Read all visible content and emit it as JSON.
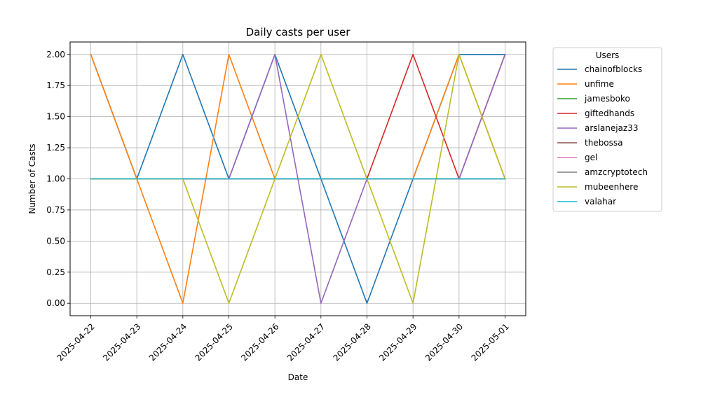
{
  "chart_data": {
    "type": "line",
    "title": "Daily casts per user",
    "xlabel": "Date",
    "ylabel": "Number of Casts",
    "x": [
      "2025-04-22",
      "2025-04-23",
      "2025-04-24",
      "2025-04-25",
      "2025-04-26",
      "2025-04-27",
      "2025-04-28",
      "2025-04-29",
      "2025-04-30",
      "2025-05-01"
    ],
    "ylim": [
      -0.1,
      2.1
    ],
    "yticks": [
      0.0,
      0.25,
      0.5,
      0.75,
      1.0,
      1.25,
      1.5,
      1.75,
      2.0
    ],
    "ytick_labels": [
      "0.00",
      "0.25",
      "0.50",
      "0.75",
      "1.00",
      "1.25",
      "1.50",
      "1.75",
      "2.00"
    ],
    "grid": true,
    "legend": {
      "title": "Users",
      "placement": "outside-right"
    },
    "series": [
      {
        "name": "chainofblocks",
        "color": "#1f77b4",
        "values": [
          2,
          1,
          2,
          1,
          2,
          1,
          0,
          1,
          2,
          2
        ]
      },
      {
        "name": "unfime",
        "color": "#ff7f0e",
        "values": [
          2,
          1,
          0,
          2,
          1,
          1,
          1,
          1,
          2,
          1
        ]
      },
      {
        "name": "jamesboko",
        "color": "#2ca02c",
        "values": [
          1,
          1,
          1,
          1,
          1,
          1,
          1,
          1,
          1,
          1
        ]
      },
      {
        "name": "giftedhands",
        "color": "#d62728",
        "values": [
          1,
          1,
          1,
          1,
          1,
          1,
          1,
          2,
          1,
          2
        ]
      },
      {
        "name": "arslanejaz33",
        "color": "#9467bd",
        "values": [
          1,
          1,
          1,
          1,
          2,
          0,
          1,
          1,
          1,
          2
        ]
      },
      {
        "name": "thebossa",
        "color": "#8c564b",
        "values": [
          1,
          1,
          1,
          1,
          1,
          1,
          1,
          1,
          1,
          1
        ]
      },
      {
        "name": "gel",
        "color": "#e377c2",
        "values": [
          1,
          1,
          1,
          1,
          1,
          1,
          1,
          1,
          1,
          1
        ]
      },
      {
        "name": "amzcryptotech",
        "color": "#7f7f7f",
        "values": [
          1,
          1,
          1,
          1,
          1,
          1,
          1,
          1,
          1,
          1
        ]
      },
      {
        "name": "mubeenhere",
        "color": "#bcbd22",
        "values": [
          1,
          1,
          1,
          0,
          1,
          2,
          1,
          0,
          2,
          1
        ]
      },
      {
        "name": "valahar",
        "color": "#17becf",
        "values": [
          1,
          1,
          1,
          1,
          1,
          1,
          1,
          1,
          1,
          1
        ]
      }
    ]
  }
}
